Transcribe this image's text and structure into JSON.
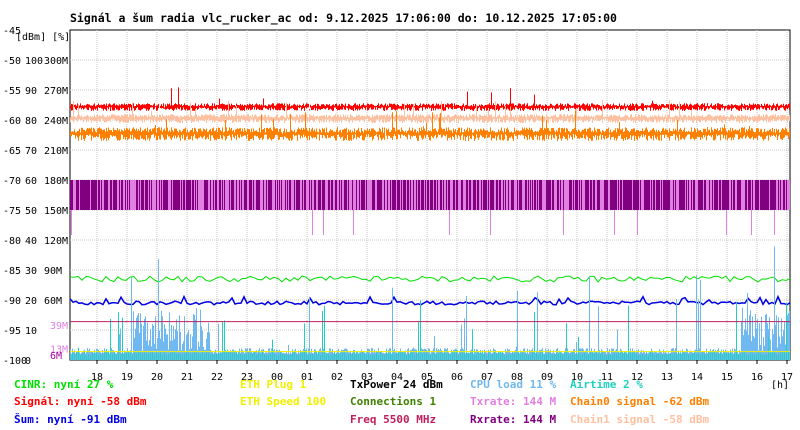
{
  "title": "Signál a šum radia vlc_rucker_ac od: 9.12.2025 17:06:00 do: 10.12.2025 17:05:00",
  "axis_units_label": "[dBm] [%]",
  "x_unit_label": "[h]",
  "left_tick_labels": [
    {
      "dbm": "-45",
      "pct": "",
      "rate": ""
    },
    {
      "dbm": "-50",
      "pct": "100",
      "rate": "300M"
    },
    {
      "dbm": "-55",
      "pct": "90",
      "rate": "270M"
    },
    {
      "dbm": "-60",
      "pct": "80",
      "rate": "240M"
    },
    {
      "dbm": "-65",
      "pct": "70",
      "rate": "210M"
    },
    {
      "dbm": "-70",
      "pct": "60",
      "rate": "180M"
    },
    {
      "dbm": "-75",
      "pct": "50",
      "rate": "150M"
    },
    {
      "dbm": "-80",
      "pct": "40",
      "rate": "120M"
    },
    {
      "dbm": "-85",
      "pct": "30",
      "rate": "90M"
    },
    {
      "dbm": "-90",
      "pct": "20",
      "rate": "60M"
    },
    {
      "dbm": "-95",
      "pct": "10",
      "rate": ""
    },
    {
      "dbm": "-100",
      "pct": "0",
      "rate": ""
    }
  ],
  "extra_axis_labels": [
    {
      "text": "39M",
      "dbm": -94.2,
      "color": "#e080e0"
    },
    {
      "text": "13M",
      "dbm": -98.1,
      "color": "#e080e0"
    },
    {
      "text": "6M",
      "dbm": -99.2,
      "color": "#a000a0"
    }
  ],
  "legend": [
    {
      "text": "CINR: nyní 27 %",
      "color": "#00e000",
      "col": 0,
      "row": 0
    },
    {
      "text": "Signál: nyní -58 dBm",
      "color": "#ff0000",
      "col": 0,
      "row": 1
    },
    {
      "text": "Šum: nyní -91 dBm",
      "color": "#0000e0",
      "col": 0,
      "row": 2
    },
    {
      "text": "ETH Plug 1",
      "color": "#f0f000",
      "col": 1,
      "row": 0
    },
    {
      "text": "ETH Speed 100",
      "color": "#f0f000",
      "col": 1,
      "row": 1
    },
    {
      "text": "TxPower 24 dBm",
      "color": "#000000",
      "col": 2,
      "row": 0
    },
    {
      "text": "Connections 1",
      "color": "#408000",
      "col": 2,
      "row": 1
    },
    {
      "text": "Freq 5500 MHz",
      "color": "#c02060",
      "col": 2,
      "row": 2
    },
    {
      "text": "CPU load 11 %",
      "color": "#70b8f0",
      "col": 3,
      "row": 0
    },
    {
      "text": "Txrate: 144 M",
      "color": "#e080e0",
      "col": 3,
      "row": 1
    },
    {
      "text": "Rxrate: 144 M",
      "color": "#800080",
      "col": 3,
      "row": 2
    },
    {
      "text": "Airtime 2 %",
      "color": "#20d0c0",
      "col": 4,
      "row": 0
    },
    {
      "text": "Chain0 signal -62 dBm",
      "color": "#ff8000",
      "col": 4,
      "row": 1
    },
    {
      "text": "Chain1 signal -58 dBm",
      "color": "#ffc0a0",
      "col": 4,
      "row": 2
    }
  ],
  "chart_data": {
    "type": "line",
    "title": "Signál a šum radia vlc_rucker_ac od: 9.12.2025 17:06:00 do: 10.12.2025 17:05:00",
    "xlabel": "[h]",
    "ylabel": "[dBm] [%]",
    "x_ticks": [
      "18",
      "19",
      "20",
      "21",
      "22",
      "23",
      "00",
      "01",
      "02",
      "03",
      "04",
      "05",
      "06",
      "07",
      "08",
      "09",
      "10",
      "11",
      "12",
      "13",
      "14",
      "15",
      "16",
      "17"
    ],
    "x_range_hours": [
      17.1,
      41.1
    ],
    "ylim_dbm": [
      -100,
      -45
    ],
    "grid": true,
    "series": [
      {
        "name": "Signál",
        "unit": "dBm",
        "color": "#ff0000",
        "band": [
          -58.5,
          -57.2
        ],
        "value_now": -58
      },
      {
        "name": "Chain1 signal",
        "unit": "dBm",
        "color": "#ffc0a0",
        "band": [
          -60.5,
          -59.0
        ],
        "value_now": -58
      },
      {
        "name": "Chain0 signal",
        "unit": "dBm",
        "color": "#ff8000",
        "band": [
          -63.5,
          -61.2
        ],
        "value_now": -62
      },
      {
        "name": "Rxrate",
        "unit": "M",
        "color": "#800080",
        "band_mbit": [
          150,
          180
        ],
        "value_now": 144
      },
      {
        "name": "Txrate",
        "unit": "M",
        "color": "#e080e0",
        "band_mbit": [
          150,
          180
        ],
        "value_now": 144
      },
      {
        "name": "CINR",
        "unit": "%",
        "color": "#00e000",
        "approx_value": 27,
        "value_now": 27
      },
      {
        "name": "Šum",
        "unit": "dBm",
        "color": "#0000e0",
        "approx_value": -90.5,
        "value_now": -91
      },
      {
        "name": "CPU load",
        "unit": "%",
        "color": "#70b8f0",
        "baseline": 2,
        "value_now": 11
      },
      {
        "name": "Airtime",
        "unit": "%",
        "color": "#20d0c0",
        "baseline": 1.5,
        "value_now": 2
      },
      {
        "name": "ETH Speed",
        "unit": "",
        "color": "#f0f000",
        "value_now": 100
      },
      {
        "name": "Freq",
        "unit": "MHz",
        "color": "#c02060",
        "value_now": 5500
      }
    ]
  }
}
